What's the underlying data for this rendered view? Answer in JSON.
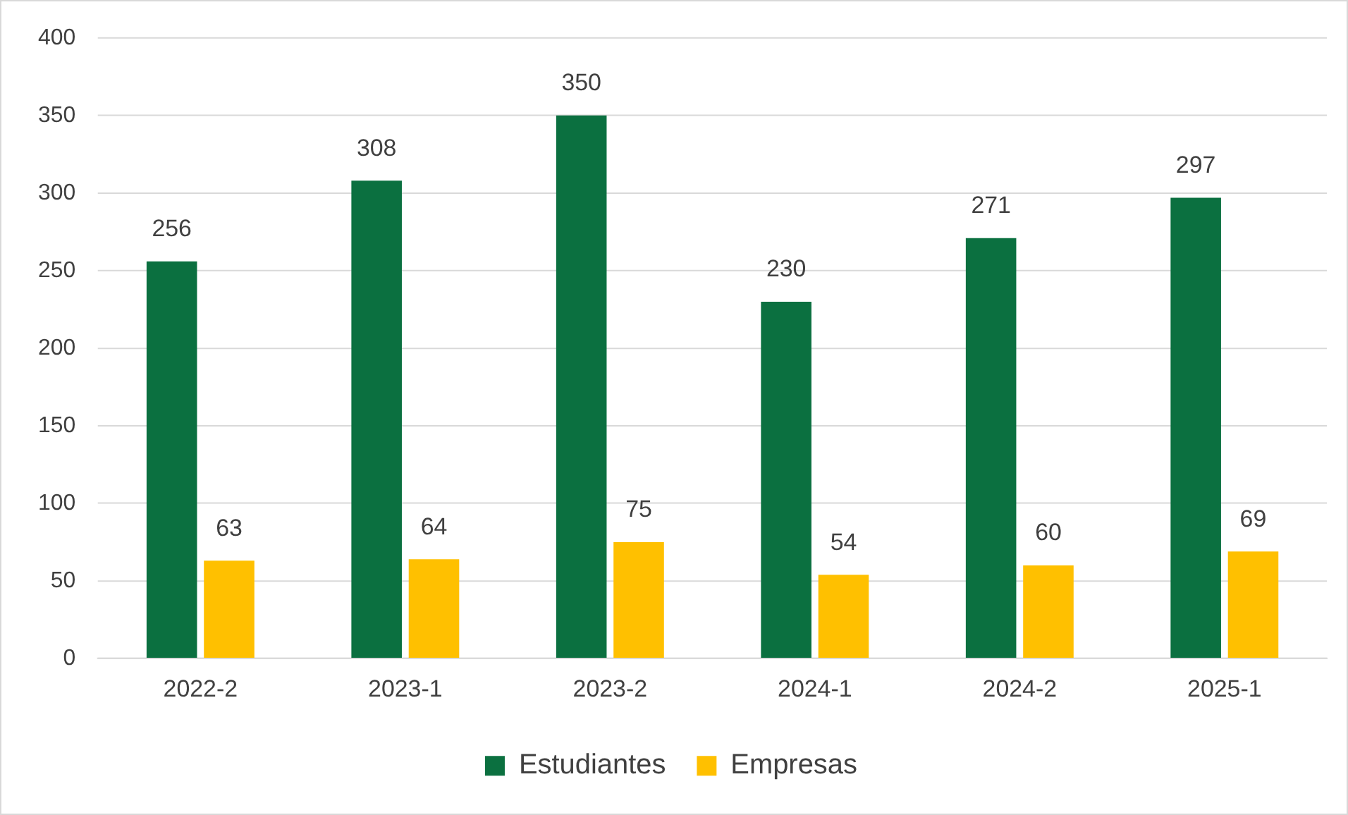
{
  "chart_data": {
    "type": "bar",
    "categories": [
      "2022-2",
      "2023-1",
      "2023-2",
      "2024-1",
      "2024-2",
      "2025-1"
    ],
    "series": [
      {
        "name": "Estudiantes",
        "color": "#0b7040",
        "values": [
          256,
          308,
          350,
          230,
          271,
          297
        ]
      },
      {
        "name": "Empresas",
        "color": "#ffc000",
        "values": [
          63,
          64,
          75,
          54,
          60,
          69
        ]
      }
    ],
    "ylim": [
      0,
      400
    ],
    "yticks": [
      0,
      50,
      100,
      150,
      200,
      250,
      300,
      350,
      400
    ],
    "grid": "y",
    "legend": "bottom",
    "data_labels": true
  }
}
